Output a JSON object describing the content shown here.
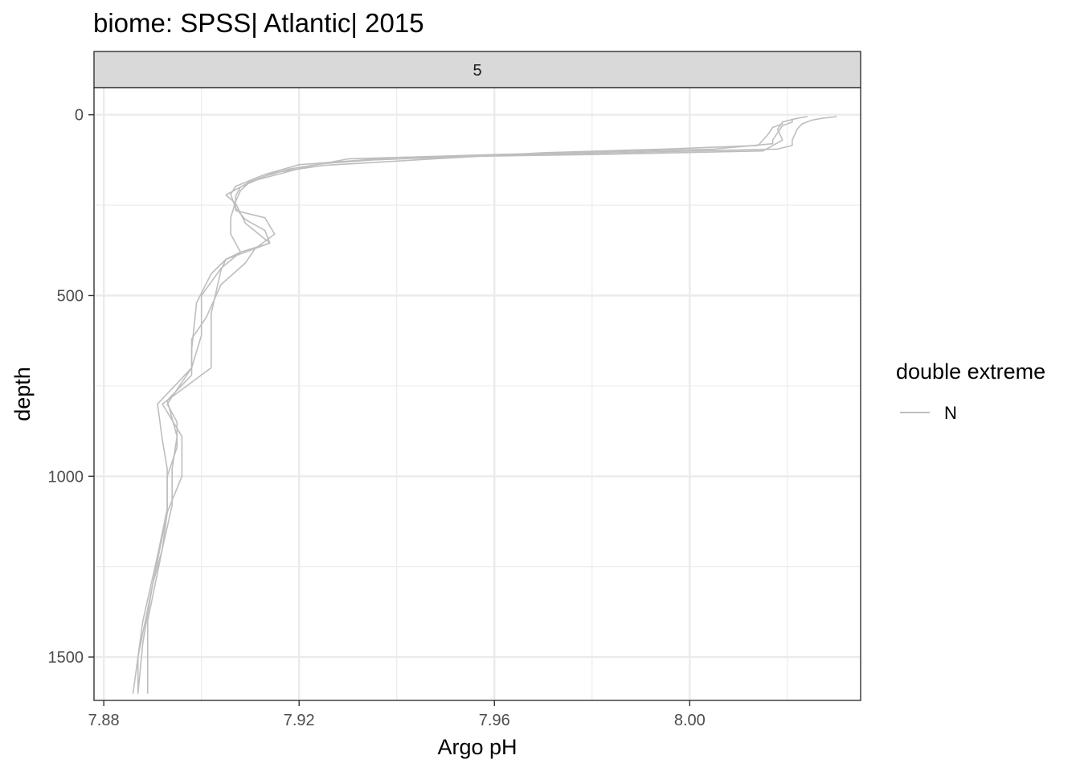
{
  "chart_data": {
    "type": "line",
    "title": "biome: SPSS| Atlantic| 2015",
    "facet_label": "5",
    "xlabel": "Argo pH",
    "ylabel": "depth",
    "xlim": [
      7.878,
      8.035
    ],
    "ylim": [
      1620,
      -75
    ],
    "y_reversed": true,
    "x_ticks": [
      7.88,
      7.92,
      7.96,
      8.0
    ],
    "x_tick_labels": [
      "7.88",
      "7.92",
      "7.96",
      "8.00"
    ],
    "y_ticks": [
      0,
      500,
      1000,
      1500
    ],
    "y_tick_labels": [
      "0",
      "500",
      "1000",
      "1500"
    ],
    "grid": true,
    "legend": {
      "title": "double extreme",
      "position": "right",
      "entries": [
        {
          "label": "N",
          "color": "#bebebe"
        }
      ]
    },
    "series": [
      {
        "color": "#bebebe",
        "points": [
          [
            8.024,
            5
          ],
          [
            8.022,
            10
          ],
          [
            8.019,
            20
          ],
          [
            8.018,
            40
          ],
          [
            8.019,
            70
          ],
          [
            8.015,
            100
          ],
          [
            7.98,
            110
          ],
          [
            7.94,
            118
          ],
          [
            7.92,
            138
          ],
          [
            7.913,
            165
          ],
          [
            7.907,
            198
          ],
          [
            7.906,
            220
          ],
          [
            7.907,
            258
          ],
          [
            7.909,
            290
          ],
          [
            7.913,
            320
          ],
          [
            7.914,
            355
          ],
          [
            7.908,
            380
          ],
          [
            7.904,
            425
          ],
          [
            7.9,
            500
          ],
          [
            7.9,
            610
          ],
          [
            7.898,
            700
          ],
          [
            7.893,
            800
          ],
          [
            7.895,
            850
          ],
          [
            7.895,
            920
          ],
          [
            7.893,
            1000
          ],
          [
            7.893,
            1090
          ],
          [
            7.891,
            1220
          ],
          [
            7.888,
            1400
          ],
          [
            7.886,
            1600
          ]
        ]
      },
      {
        "color": "#bebebe",
        "points": [
          [
            8.021,
            12
          ],
          [
            8.021,
            20
          ],
          [
            8.019,
            30
          ],
          [
            8.017,
            70
          ],
          [
            8.017,
            80
          ],
          [
            8.005,
            95
          ],
          [
            7.96,
            110
          ],
          [
            7.93,
            122
          ],
          [
            7.922,
            142
          ],
          [
            7.917,
            160
          ],
          [
            7.91,
            185
          ],
          [
            7.908,
            200
          ],
          [
            7.907,
            225
          ],
          [
            7.907,
            265
          ],
          [
            7.913,
            285
          ],
          [
            7.915,
            330
          ],
          [
            7.911,
            370
          ],
          [
            7.909,
            410
          ],
          [
            7.904,
            470
          ],
          [
            7.901,
            560
          ],
          [
            7.898,
            620
          ],
          [
            7.898,
            700
          ],
          [
            7.891,
            800
          ],
          [
            7.892,
            900
          ],
          [
            7.893,
            980
          ],
          [
            7.893,
            1100
          ],
          [
            7.89,
            1300
          ],
          [
            7.887,
            1500
          ],
          [
            7.887,
            1600
          ]
        ]
      },
      {
        "color": "#bebebe",
        "points": [
          [
            8.03,
            5
          ],
          [
            8.027,
            10
          ],
          [
            8.025,
            15
          ],
          [
            8.023,
            25
          ],
          [
            8.022,
            40
          ],
          [
            8.021,
            70
          ],
          [
            8.021,
            85
          ],
          [
            8.018,
            95
          ],
          [
            7.985,
            105
          ],
          [
            7.955,
            115
          ],
          [
            7.935,
            125
          ],
          [
            7.925,
            135
          ],
          [
            7.918,
            150
          ],
          [
            7.913,
            170
          ],
          [
            7.908,
            200
          ],
          [
            7.905,
            222
          ],
          [
            7.907,
            245
          ],
          [
            7.909,
            300
          ],
          [
            7.914,
            355
          ],
          [
            7.905,
            400
          ],
          [
            7.904,
            430
          ],
          [
            7.902,
            550
          ],
          [
            7.902,
            700
          ],
          [
            7.892,
            800
          ],
          [
            7.896,
            890
          ],
          [
            7.896,
            1000
          ],
          [
            7.893,
            1100
          ],
          [
            7.892,
            1200
          ],
          [
            7.889,
            1400
          ],
          [
            7.889,
            1600
          ]
        ]
      },
      {
        "color": "#bebebe",
        "points": [
          [
            8.019,
            25
          ],
          [
            8.017,
            35
          ],
          [
            8.016,
            55
          ],
          [
            8.014,
            85
          ],
          [
            7.995,
            95
          ],
          [
            7.97,
            105
          ],
          [
            7.95,
            120
          ],
          [
            7.925,
            140
          ],
          [
            7.915,
            160
          ],
          [
            7.91,
            185
          ],
          [
            7.908,
            210
          ],
          [
            7.907,
            240
          ],
          [
            7.906,
            285
          ],
          [
            7.906,
            330
          ],
          [
            7.908,
            380
          ],
          [
            7.905,
            400
          ],
          [
            7.902,
            440
          ],
          [
            7.899,
            520
          ],
          [
            7.898,
            650
          ],
          [
            7.898,
            720
          ],
          [
            7.893,
            790
          ],
          [
            7.895,
            890
          ],
          [
            7.894,
            980
          ],
          [
            7.894,
            1080
          ],
          [
            7.892,
            1200
          ],
          [
            7.89,
            1300
          ],
          [
            7.888,
            1460
          ],
          [
            7.887,
            1600
          ]
        ]
      }
    ]
  }
}
